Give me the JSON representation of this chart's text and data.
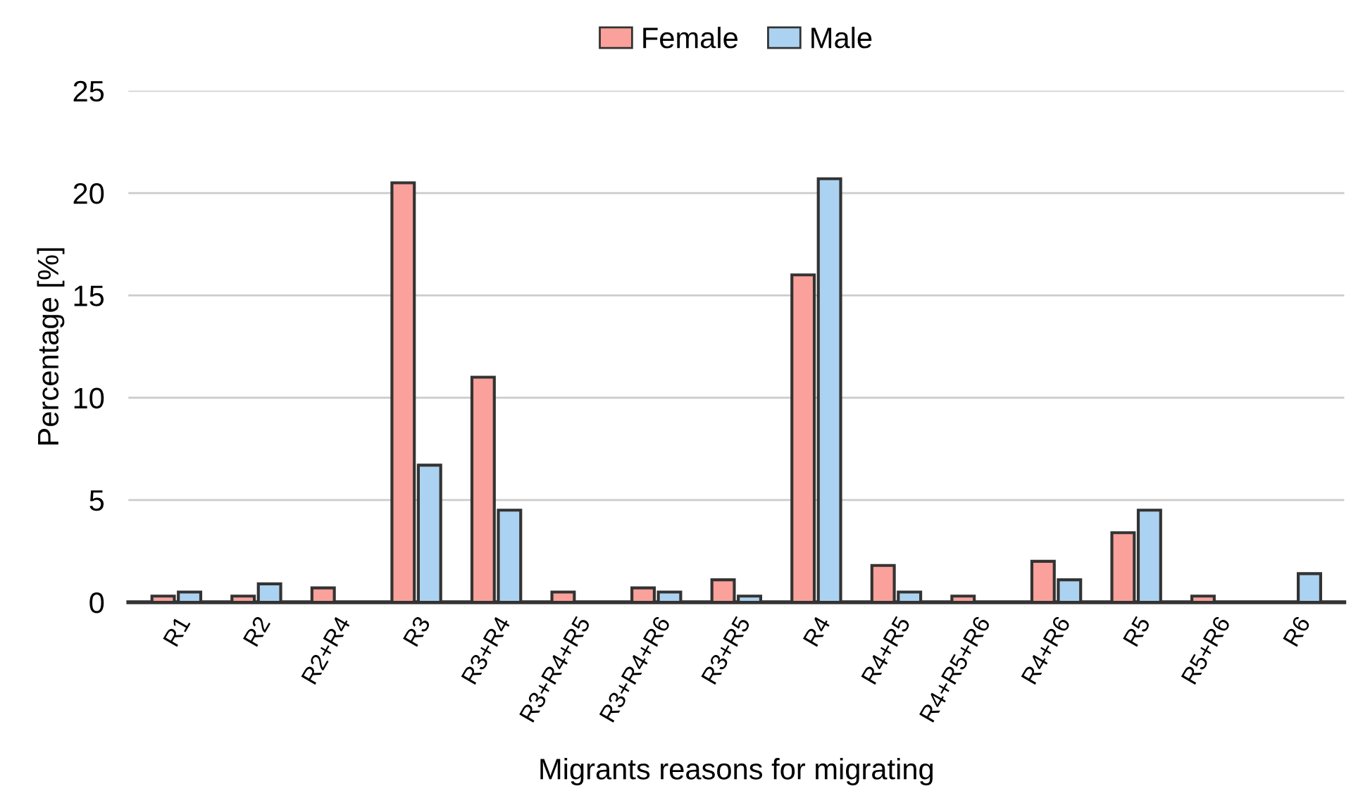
{
  "chart_data": {
    "type": "bar",
    "xlabel": "Migrants reasons for migrating",
    "ylabel": "Percentage [%]",
    "categories": [
      "R1",
      "R2",
      "R2+R4",
      "R3",
      "R3+R4",
      "R3+R4+R5",
      "R3+R4+R6",
      "R3+R5",
      "R4",
      "R4+R5",
      "R4+R5+R6",
      "R4+R6",
      "R5",
      "R5+R6",
      "R6"
    ],
    "series": [
      {
        "name": "Female",
        "color": "#f9a19a",
        "values": [
          0.3,
          0.3,
          0.7,
          20.5,
          11.0,
          0.5,
          0.7,
          1.1,
          16.0,
          1.8,
          0.3,
          2.0,
          3.4,
          0.3,
          null
        ]
      },
      {
        "name": "Male",
        "color": "#abd2f0",
        "values": [
          0.5,
          0.9,
          null,
          6.7,
          4.5,
          null,
          0.5,
          0.3,
          20.7,
          0.5,
          null,
          1.1,
          4.5,
          null,
          1.4
        ]
      }
    ],
    "ylim": [
      0,
      25
    ],
    "yticks": [
      0,
      5,
      10,
      15,
      20,
      25
    ],
    "grid": "y",
    "legend": "top"
  }
}
